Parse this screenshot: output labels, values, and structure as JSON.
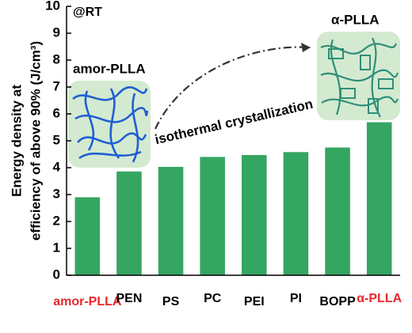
{
  "chart_data": {
    "type": "bar",
    "y_label": [
      "Energy density at",
      "efficiency of above 90% (J/cm³)"
    ],
    "categories": [
      "amor-PLLA",
      "PEN",
      "PS",
      "PC",
      "PEI",
      "PI",
      "BOPP",
      "α-PLLA"
    ],
    "category_colors": [
      "#e8262b",
      "#000000",
      "#000000",
      "#000000",
      "#000000",
      "#000000",
      "#000000",
      "#e8262b"
    ],
    "values": [
      2.9,
      3.86,
      4.03,
      4.4,
      4.47,
      4.58,
      4.75,
      5.69
    ],
    "color": "#35a562",
    "ylim": [
      0,
      10
    ],
    "yticks": [
      0,
      1,
      2,
      3,
      4,
      5,
      6,
      7,
      8,
      9,
      10
    ],
    "annotations": [
      "@RT",
      "amor-PLLA",
      "α-PLLA",
      "isothermal crystallization"
    ]
  }
}
